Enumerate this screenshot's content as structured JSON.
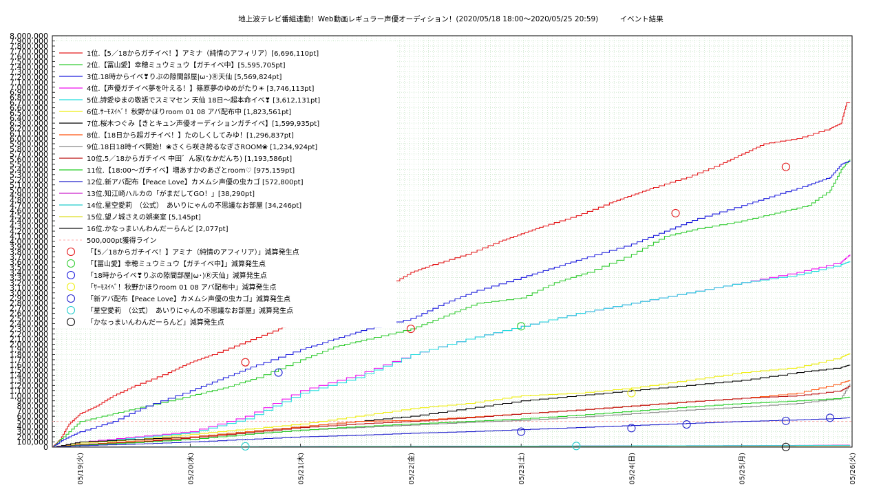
{
  "chart_data": {
    "type": "line",
    "title": "地上波テレビ番組連動！Web動画レギュラー声優オーディション！(2020/05/18 18:00〜2020/05/25 20:59)　　　イベント結果",
    "xlabel": "",
    "ylabel": "",
    "x_ticks": [
      "05/19(火)",
      "05/20(水)",
      "05/21(木)",
      "05/22(金)",
      "05/23(土)",
      "05/24(日)",
      "05/25(月)",
      "05/26(火)"
    ],
    "y_ticks": [
      "0",
      "100,000",
      "200,000",
      "300,000",
      "400,000",
      "500,000",
      "600,000",
      "700,000",
      "800,000",
      "900,000",
      "1,000,000",
      "1,100,000",
      "1,200,000",
      "1,300,000",
      "1,400,000",
      "1,500,000",
      "1,600,000",
      "1,700,000",
      "1,800,000",
      "1,900,000",
      "2,000,000",
      "2,100,000",
      "2,200,000",
      "2,300,000",
      "2,400,000",
      "2,500,000",
      "2,600,000",
      "2,700,000",
      "2,800,000",
      "2,900,000",
      "3,000,000",
      "3,100,000",
      "3,200,000",
      "3,300,000",
      "3,400,000",
      "3,500,000",
      "3,600,000",
      "3,700,000",
      "3,800,000",
      "3,900,000",
      "4,000,000",
      "4,100,000",
      "4,200,000",
      "4,300,000",
      "4,400,000",
      "4,500,000",
      "4,600,000",
      "4,700,000",
      "4,800,000",
      "4,900,000",
      "5,000,000",
      "5,100,000",
      "5,200,000",
      "5,300,000",
      "5,400,000",
      "5,500,000",
      "5,600,000",
      "5,700,000",
      "5,800,000",
      "5,900,000",
      "6,000,000",
      "6,100,000",
      "6,200,000",
      "6,300,000",
      "6,400,000",
      "6,500,000",
      "6,600,000",
      "6,700,000",
      "6,800,000",
      "6,900,000",
      "7,000,000",
      "7,100,000",
      "7,200,000",
      "7,300,000",
      "7,400,000",
      "7,500,000",
      "7,600,000",
      "7,700,000",
      "7,800,000",
      "7,900,000",
      "8,000,000"
    ],
    "xlim": [
      0,
      7
    ],
    "ylim": [
      0,
      8000000
    ],
    "grid": true,
    "legend_position": "top-left",
    "x_unit": "days since 05/19 00:00",
    "series": [
      {
        "name": "1位.【5／18からガチイベ！】アミナ（純情のアフィリア）[6,696,110pt]",
        "color": "#e41a1c",
        "x": [
          -0.25,
          -0.18,
          -0.1,
          0,
          0.15,
          0.3,
          0.5,
          0.8,
          1.0,
          1.2,
          1.5,
          1.8,
          2.0,
          2.2,
          2.5,
          2.8,
          3.0,
          3.2,
          3.5,
          3.8,
          4.0,
          4.2,
          4.5,
          4.8,
          5.0,
          5.2,
          5.5,
          5.8,
          6.0,
          6.2,
          6.5,
          6.8,
          6.9,
          6.95,
          6.98
        ],
        "y": [
          0,
          150000,
          450000,
          650000,
          800000,
          1000000,
          1200000,
          1450000,
          1650000,
          1800000,
          2050000,
          2300000,
          2500000,
          2650000,
          2900000,
          3150000,
          3400000,
          3550000,
          3750000,
          4000000,
          4150000,
          4300000,
          4500000,
          4750000,
          4900000,
          5050000,
          5250000,
          5500000,
          5700000,
          5900000,
          6000000,
          6200000,
          6300000,
          6700000,
          6696110
        ]
      },
      {
        "name": "2位.【冨山愛】幸穂ミュウミュウ【ガチイベ中】[5,595,705pt]",
        "color": "#33cc33",
        "x": [
          -0.25,
          -0.15,
          0,
          0.3,
          0.6,
          1.0,
          1.3,
          1.6,
          2.0,
          2.3,
          2.6,
          3.0,
          3.3,
          3.6,
          4.0,
          4.3,
          4.6,
          5.0,
          5.3,
          5.6,
          6.0,
          6.3,
          6.6,
          6.8,
          6.9,
          6.98
        ],
        "y": [
          0,
          200000,
          500000,
          650000,
          800000,
          1000000,
          1150000,
          1350000,
          1700000,
          1950000,
          2100000,
          2300000,
          2550000,
          2800000,
          2900000,
          3200000,
          3400000,
          3750000,
          4100000,
          4250000,
          4400000,
          4550000,
          4700000,
          5000000,
          5400000,
          5595705
        ]
      },
      {
        "name": "3位.18時からイベ❣りぶの隙間部屋|ω･)Ⓡ天仙 [5,569,824pt]",
        "color": "#1f1fdd",
        "x": [
          -0.25,
          -0.15,
          0,
          0.3,
          0.6,
          1.0,
          1.3,
          1.6,
          2.0,
          2.3,
          2.6,
          3.0,
          3.3,
          3.6,
          4.0,
          4.3,
          4.6,
          5.0,
          5.3,
          5.6,
          6.0,
          6.3,
          6.6,
          6.8,
          6.9,
          6.98
        ],
        "y": [
          0,
          150000,
          300000,
          500000,
          800000,
          1100000,
          1350000,
          1600000,
          1900000,
          2100000,
          2300000,
          2500000,
          2800000,
          3050000,
          3300000,
          3500000,
          3700000,
          3950000,
          4200000,
          4450000,
          4700000,
          4900000,
          5100000,
          5250000,
          5500000,
          5569824
        ]
      },
      {
        "name": "4位.【声優ガチイベ夢を叶える！】篠原夢のゆめがたり☀ [3,746,113pt]",
        "color": "#ee11ee",
        "x": [
          -0.25,
          0,
          0.5,
          1.0,
          1.5,
          2.0,
          2.5,
          3.0,
          3.5,
          4.0,
          4.5,
          5.0,
          5.5,
          6.0,
          6.5,
          6.9,
          6.98
        ],
        "y": [
          0,
          100000,
          200000,
          300000,
          600000,
          1100000,
          1400000,
          1800000,
          2100000,
          2350000,
          2600000,
          2800000,
          3000000,
          3200000,
          3400000,
          3600000,
          3746113
        ]
      },
      {
        "name": "5位.詩愛ゆまの敬語でスミマセン 天仙 18日〜超本命イベ❣ [3,612,131pt]",
        "color": "#22dddd",
        "x": [
          -0.25,
          0,
          0.5,
          1.0,
          1.5,
          2.0,
          2.5,
          3.0,
          3.5,
          4.0,
          4.5,
          5.0,
          5.5,
          6.0,
          6.5,
          6.9,
          6.98
        ],
        "y": [
          0,
          80000,
          180000,
          280000,
          550000,
          1050000,
          1350000,
          1800000,
          2100000,
          2350000,
          2600000,
          2800000,
          3000000,
          3200000,
          3350000,
          3550000,
          3612131
        ]
      },
      {
        "name": "6位.ｻｰﾓｽｲﾍﾞ！秋野かほりroom 01 08 アバ配布中 [1,823,561pt]",
        "color": "#eeee11",
        "x": [
          -0.25,
          0,
          0.5,
          1.0,
          1.5,
          2.0,
          2.5,
          3.0,
          3.5,
          4.0,
          4.5,
          5.0,
          5.5,
          6.0,
          6.5,
          6.9,
          6.98
        ],
        "y": [
          0,
          80000,
          150000,
          250000,
          350000,
          450000,
          600000,
          750000,
          850000,
          1000000,
          1050000,
          1150000,
          1300000,
          1450000,
          1550000,
          1750000,
          1823561
        ]
      },
      {
        "name": "7位.桜木つぐみ【きとキュン声優オーディションガチイベ】[1,599,935pt]",
        "color": "#000000",
        "x": [
          -0.25,
          0,
          0.5,
          1.0,
          1.5,
          2.0,
          2.5,
          3.0,
          3.5,
          4.0,
          4.5,
          5.0,
          5.5,
          6.0,
          6.5,
          6.9,
          6.98
        ],
        "y": [
          0,
          100000,
          150000,
          200000,
          300000,
          400000,
          500000,
          600000,
          750000,
          900000,
          1000000,
          1100000,
          1200000,
          1300000,
          1450000,
          1550000,
          1599935
        ]
      },
      {
        "name": "8位.【18日から超ガチイベ！】たのしくしてみゆ！[1,296,837pt]",
        "color": "#ff5511",
        "x": [
          -0.25,
          0,
          0.5,
          1.0,
          1.5,
          2.0,
          2.5,
          3.0,
          3.5,
          4.0,
          4.5,
          5.0,
          5.5,
          6.0,
          6.5,
          6.9,
          6.98
        ],
        "y": [
          0,
          50000,
          120000,
          200000,
          300000,
          400000,
          500000,
          520000,
          580000,
          650000,
          720000,
          800000,
          880000,
          950000,
          1050000,
          1250000,
          1296837
        ]
      },
      {
        "name": "9位.18日18時イベ開始！❀さくら咲き誇るなぎさROOM❀ [1,234,924pt]",
        "color": "#888888",
        "x": [
          -0.25,
          0,
          0.5,
          1.0,
          1.5,
          2.0,
          2.5,
          3.0,
          3.5,
          4.0,
          4.5,
          5.0,
          5.5,
          6.0,
          6.5,
          6.9,
          6.98
        ],
        "y": [
          0,
          50000,
          100000,
          150000,
          250000,
          330000,
          380000,
          430000,
          480000,
          520000,
          580000,
          650000,
          720000,
          780000,
          850000,
          950000,
          1234924
        ]
      },
      {
        "name": "10位.5／18からガチイベ 中田゛ん家(なかだんち) [1,193,586pt]",
        "color": "#bb1111",
        "x": [
          -0.25,
          0,
          0.5,
          1.0,
          1.5,
          2.0,
          2.5,
          3.0,
          3.5,
          4.0,
          4.5,
          5.0,
          5.5,
          6.0,
          6.5,
          6.9,
          6.98
        ],
        "y": [
          0,
          50000,
          100000,
          180000,
          280000,
          380000,
          450000,
          500000,
          570000,
          650000,
          720000,
          800000,
          880000,
          950000,
          1000000,
          1100000,
          1193586
        ]
      },
      {
        "name": "11位.【18:00〜ガチイベ】増あすかのあざとroom♡ [975,159pt]",
        "color": "#22cc22",
        "x": [
          -0.25,
          0,
          0.5,
          1.0,
          1.5,
          2.0,
          2.5,
          3.0,
          3.5,
          4.0,
          4.5,
          5.0,
          5.5,
          6.0,
          6.5,
          6.9,
          6.98
        ],
        "y": [
          0,
          40000,
          90000,
          150000,
          250000,
          330000,
          400000,
          450000,
          500000,
          550000,
          620000,
          700000,
          780000,
          850000,
          900000,
          950000,
          975159
        ]
      },
      {
        "name": "12位.新アバ配布【Peace Love】カメムシ声優の虫カゴ [572,800pt]",
        "color": "#2222cc",
        "x": [
          -0.25,
          0,
          0.5,
          1.0,
          1.5,
          2.0,
          2.5,
          3.0,
          3.5,
          4.0,
          4.5,
          5.0,
          5.5,
          6.0,
          6.5,
          6.9,
          6.98
        ],
        "y": [
          0,
          30000,
          60000,
          100000,
          150000,
          200000,
          230000,
          270000,
          300000,
          340000,
          380000,
          420000,
          460000,
          500000,
          530000,
          560000,
          572800
        ]
      },
      {
        "name": "13位.知江崎ハルカの「がまだしてGO！」[38,290pt]",
        "color": "#cc22cc",
        "x": [
          -0.25,
          1.0,
          2.0,
          3.0,
          4.0,
          5.0,
          6.0,
          6.98
        ],
        "y": [
          0,
          5000,
          10000,
          15000,
          20000,
          25000,
          30000,
          38290
        ]
      },
      {
        "name": "14位.星空愛莉　（公式）　あいりにゃんの不思議なお部屋 [34,246pt]",
        "color": "#22cccc",
        "x": [
          -0.25,
          1.0,
          2.0,
          3.0,
          4.0,
          5.0,
          6.0,
          6.98
        ],
        "y": [
          0,
          5000,
          10000,
          15000,
          20000,
          25000,
          30000,
          34246
        ]
      },
      {
        "name": "15位.望ノ城さえの娯楽室 [5,145pt]",
        "color": "#dddd22",
        "x": [
          -0.25,
          2.0,
          4.0,
          6.98
        ],
        "y": [
          0,
          2000,
          4000,
          5145
        ]
      },
      {
        "name": "16位.かなっまいんわんだーらんど [2,077pt]",
        "color": "#111111",
        "x": [
          -0.25,
          2.0,
          4.0,
          6.98
        ],
        "y": [
          0,
          1000,
          1500,
          2077
        ]
      }
    ],
    "threshold_line": {
      "name": "500,000pt獲得ライン",
      "value": 500000,
      "color": "#ffaaaa"
    },
    "event_points": [
      {
        "name": "「【5／18からガチイベ！】アミナ（純情のアフィリア）」減算発生点",
        "color": "#e41a1c",
        "points": [
          [
            1.5,
            1650000
          ],
          [
            3.0,
            2300000
          ],
          [
            5.4,
            4550000
          ],
          [
            6.4,
            5450000
          ]
        ]
      },
      {
        "name": "「【冨山愛】幸穂ミュウミュウ【ガチイベ中】」減算発生点",
        "color": "#33cc33",
        "points": [
          [
            4.0,
            2350000
          ]
        ]
      },
      {
        "name": "「18時からイベ❣りぶの隙間部屋|ω･)Ⓡ天仙」減算発生点",
        "color": "#1f1fdd",
        "points": [
          [
            1.8,
            1450000
          ]
        ]
      },
      {
        "name": "「ｻｰﾓｽｲﾍﾞ！秋野かほりroom 01 08 アバ配布中」減算発生点",
        "color": "#eeee11",
        "points": [
          [
            5.0,
            1050000
          ]
        ]
      },
      {
        "name": "「新アバ配布【Peace Love】カメムシ声優の虫カゴ」減算発生点",
        "color": "#2222cc",
        "points": [
          [
            4.0,
            300000
          ],
          [
            5.0,
            370000
          ],
          [
            5.5,
            440000
          ],
          [
            6.4,
            510000
          ],
          [
            6.8,
            570000
          ]
        ]
      },
      {
        "name": "「星空愛莉　（公式）　あいりにゃんの不思議なお部屋」減算発生点",
        "color": "#22cccc",
        "points": [
          [
            1.5,
            15000
          ],
          [
            4.5,
            22000
          ]
        ]
      },
      {
        "name": "「かなっまいんわんだーらんど」減算発生点",
        "color": "#111111",
        "points": [
          [
            6.4,
            2077
          ]
        ]
      }
    ]
  }
}
